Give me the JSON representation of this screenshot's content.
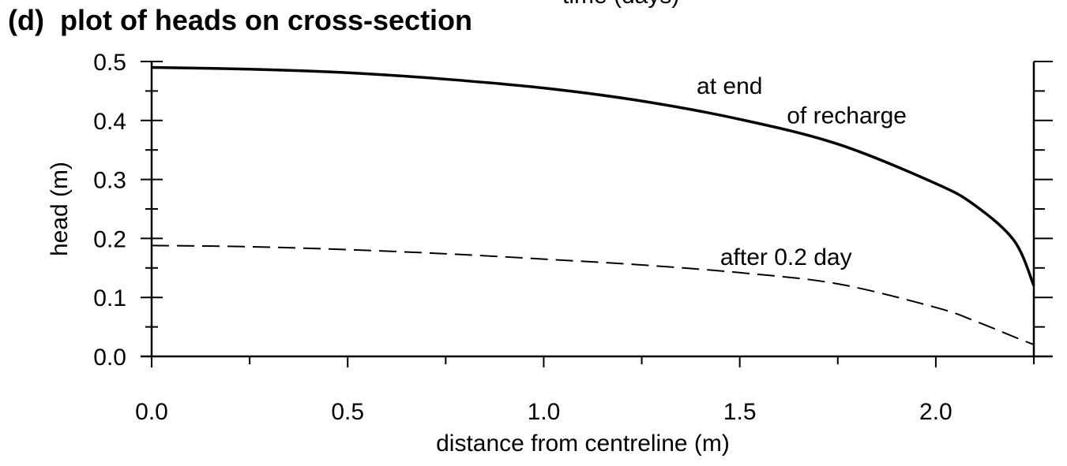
{
  "header": {
    "title": "(d)  plot of heads on cross-section",
    "cut_text": "time (days)"
  },
  "chart_data": {
    "type": "line",
    "xlabel": "distance from centreline (m)",
    "ylabel": "head (m)",
    "xlim": [
      0.0,
      2.25
    ],
    "ylim": [
      0.0,
      0.5
    ],
    "x_ticks": [
      "0.0",
      "0.5",
      "1.0",
      "1.5",
      "2.0"
    ],
    "y_ticks": [
      "0.0",
      "0.1",
      "0.2",
      "0.3",
      "0.4",
      "0.5"
    ],
    "grid": false,
    "series": [
      {
        "name": "at end of recharge",
        "style": "solid",
        "color": "#000000",
        "x": [
          0.0,
          0.25,
          0.5,
          0.75,
          1.0,
          1.25,
          1.5,
          1.75,
          2.0,
          2.1,
          2.2,
          2.25
        ],
        "y": [
          0.49,
          0.487,
          0.481,
          0.47,
          0.455,
          0.433,
          0.402,
          0.36,
          0.293,
          0.256,
          0.196,
          0.12
        ]
      },
      {
        "name": "after 0.2 day",
        "style": "dashed",
        "color": "#000000",
        "x": [
          0.0,
          0.25,
          0.5,
          0.75,
          1.0,
          1.25,
          1.5,
          1.75,
          2.0,
          2.1,
          2.2,
          2.25
        ],
        "y": [
          0.188,
          0.186,
          0.181,
          0.174,
          0.165,
          0.155,
          0.142,
          0.123,
          0.083,
          0.06,
          0.033,
          0.02
        ]
      }
    ],
    "annotations": [
      {
        "text": "at end",
        "x": 1.39,
        "y": 0.445
      },
      {
        "text": "of recharge",
        "x": 1.62,
        "y": 0.395
      },
      {
        "text": "after 0.2 day",
        "x": 1.45,
        "y": 0.155
      }
    ]
  }
}
